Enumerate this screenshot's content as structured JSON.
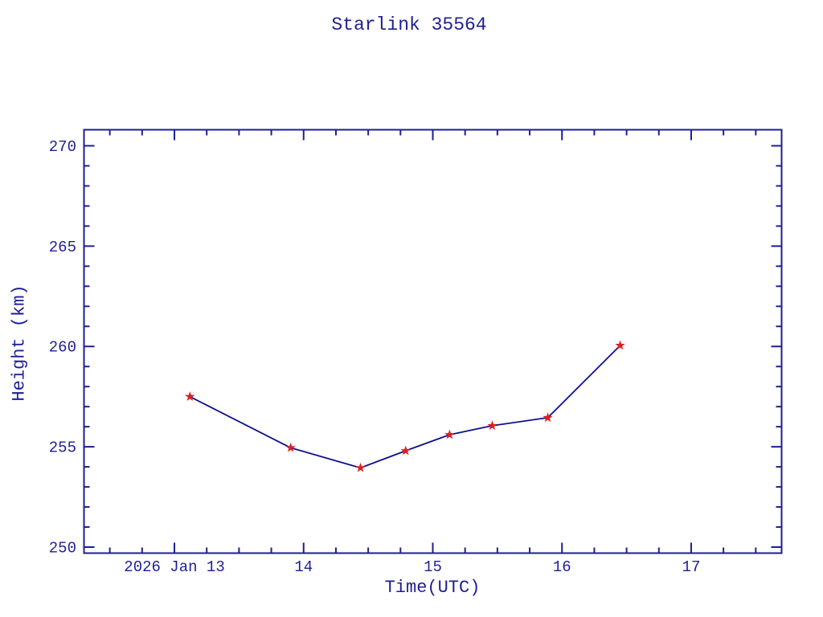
{
  "title": "Starlink 35564",
  "chart_data": {
    "type": "line",
    "title": "Starlink 35564",
    "xlabel": "Time(UTC)",
    "ylabel": "Height (km)",
    "x": [
      13.12,
      13.9,
      14.44,
      14.79,
      15.13,
      15.46,
      15.89,
      16.45
    ],
    "y": [
      257.5,
      254.95,
      253.95,
      254.8,
      255.6,
      256.05,
      256.45,
      260.05
    ],
    "xlim": [
      12.3,
      17.7
    ],
    "ylim": [
      249.7,
      270.8
    ],
    "x_major_ticks": [
      {
        "value": 13,
        "label": "2026 Jan 13"
      },
      {
        "value": 14,
        "label": "14"
      },
      {
        "value": 15,
        "label": "15"
      },
      {
        "value": 16,
        "label": "16"
      },
      {
        "value": 17,
        "label": "17"
      }
    ],
    "x_minor_step": 0.25,
    "y_major_ticks": [
      {
        "value": 250,
        "label": "250"
      },
      {
        "value": 255,
        "label": "255"
      },
      {
        "value": 260,
        "label": "260"
      },
      {
        "value": 265,
        "label": "265"
      },
      {
        "value": 270,
        "label": "270"
      }
    ],
    "y_minor_step": 1,
    "grid": false,
    "legend": null,
    "marker": "star",
    "colors": {
      "axis": "#1e1e96",
      "text": "#1e1e96",
      "line": "#10108c",
      "marker": "#dd1f1f",
      "background": "#ffffff"
    }
  }
}
